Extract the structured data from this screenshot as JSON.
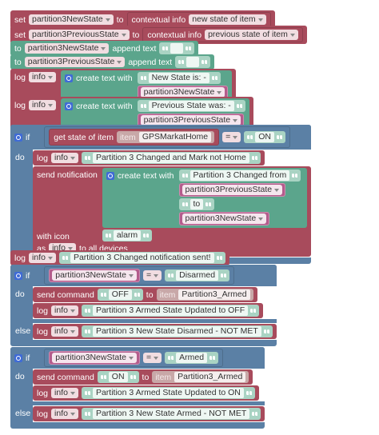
{
  "blocks": [
    {
      "set": "set",
      "variable": "partition3NewState",
      "to": "to",
      "source": "contextual info",
      "option": "new state of item"
    },
    {
      "set": "set",
      "variable": "partition3PreviousState",
      "to": "to",
      "source": "contextual info",
      "option": "previous state of item"
    },
    {
      "to": "to",
      "variable": "partition3NewState",
      "action": "append text"
    },
    {
      "to": "to",
      "variable": "partition3PreviousState",
      "action": "append text"
    },
    {
      "log": "log",
      "level": "info",
      "create": "create text with",
      "text": "New State is: -",
      "variable": "partition3NewState"
    },
    {
      "log": "log",
      "level": "info",
      "create": "create text with",
      "text": "Previous State was: -",
      "variable": "partition3PreviousState"
    },
    {
      "if": "if",
      "get_state": "get state of item",
      "item": "item",
      "item_name": "GPSMarkatHome",
      "operator": "=",
      "value": "ON",
      "do": "do",
      "log": "log",
      "level": "info",
      "message": "Partition 3 Changed and Mark not Home",
      "send": "send notification",
      "create": "create text with",
      "parts": [
        "Partition 3 Changed from",
        "partition3PreviousState",
        "to",
        "partition3NewState"
      ],
      "with_icon": "with icon",
      "icon": "alarm",
      "as": "as",
      "as_level": "info",
      "to_all": "to all devices"
    },
    {
      "log": "log",
      "level": "info",
      "message": "Partition 3 Changed notification sent!"
    },
    {
      "if": "if",
      "variable": "partition3NewState",
      "operator": "=",
      "value": "Disarmed",
      "do": "do",
      "send": "send command",
      "command": "OFF",
      "to": "to",
      "item": "item",
      "item_name": "Partition3_Armed",
      "log": "log",
      "level": "info",
      "message": "Partition 3 Armed State Updated to OFF",
      "else": "else",
      "else_log": "log",
      "else_level": "info",
      "else_message": "Partition 3 New State Disarmed - NOT MET"
    },
    {
      "if": "if",
      "variable": "partition3NewState",
      "operator": "=",
      "value": "Armed",
      "do": "do",
      "send": "send command",
      "command": "ON",
      "to": "to",
      "item": "item",
      "item_name": "Partition3_Armed",
      "log": "log",
      "level": "info",
      "message": "Partition 3 Armed State Updated to ON",
      "else": "else",
      "else_log": "log",
      "else_level": "info",
      "else_message": "Partition 3 New State Armed - NOT MET"
    }
  ]
}
